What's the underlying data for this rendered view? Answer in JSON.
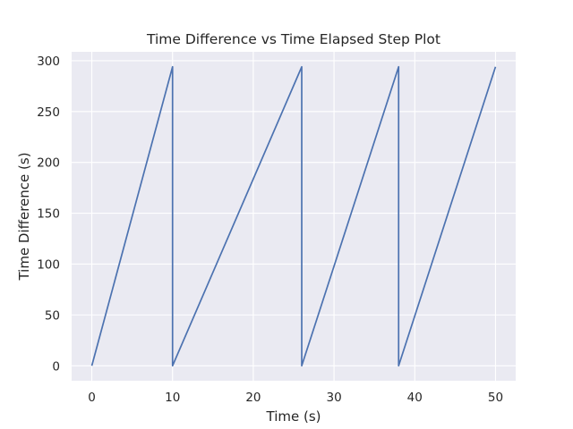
{
  "chart_data": {
    "type": "line",
    "title": "Time Difference vs Time Elapsed Step Plot",
    "xlabel": "Time (s)",
    "ylabel": "Time Difference (s)",
    "xlim": [
      -2.5,
      52.5
    ],
    "ylim": [
      -14.7,
      308.7
    ],
    "x_ticks": [
      0,
      10,
      20,
      30,
      40,
      50
    ],
    "y_ticks": [
      0,
      50,
      100,
      150,
      200,
      250,
      300
    ],
    "grid": true,
    "legend": "none",
    "series": [
      {
        "color": "#4c72b0",
        "x": [
          0,
          10,
          10,
          26,
          26,
          38,
          38,
          50
        ],
        "y": [
          0,
          294,
          0,
          294,
          0,
          294,
          0,
          294
        ]
      }
    ]
  }
}
